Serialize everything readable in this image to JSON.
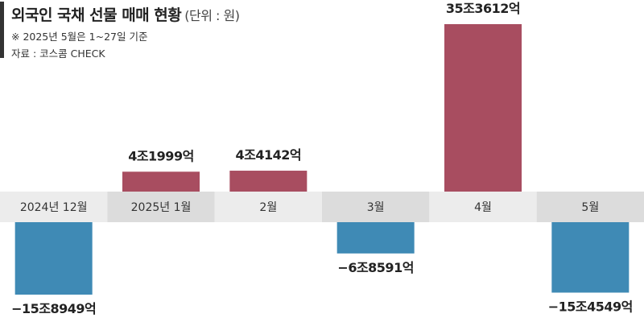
{
  "header": {
    "title": "외국인 국채 선물 매매 현황",
    "unit": "(단위 : 원)",
    "note": "※ 2025년 5월은 1~27일 기준",
    "source": "자료 : 코스콤 CHECK"
  },
  "colors": {
    "positive": "#a84d60",
    "negative": "#3f8ab5",
    "band_light": "#ececec",
    "band_dark": "#dcdcdc",
    "accent": "#333333"
  },
  "chart_data": {
    "type": "bar",
    "categories": [
      "2024년 12월",
      "2025년 1월",
      "2월",
      "3월",
      "4월",
      "5월"
    ],
    "values": [
      -158949,
      41999,
      44142,
      -68591,
      353612,
      -154549
    ],
    "value_labels": [
      "−15조8949억",
      "4조1999억",
      "4조4142억",
      "−6조8591억",
      "35조3612억",
      "−15조4549억"
    ],
    "value_unit": "억 원",
    "title": "외국인 국채 선물 매매 현황",
    "xlabel": "",
    "ylabel": "",
    "grid": false,
    "legend": "none"
  }
}
